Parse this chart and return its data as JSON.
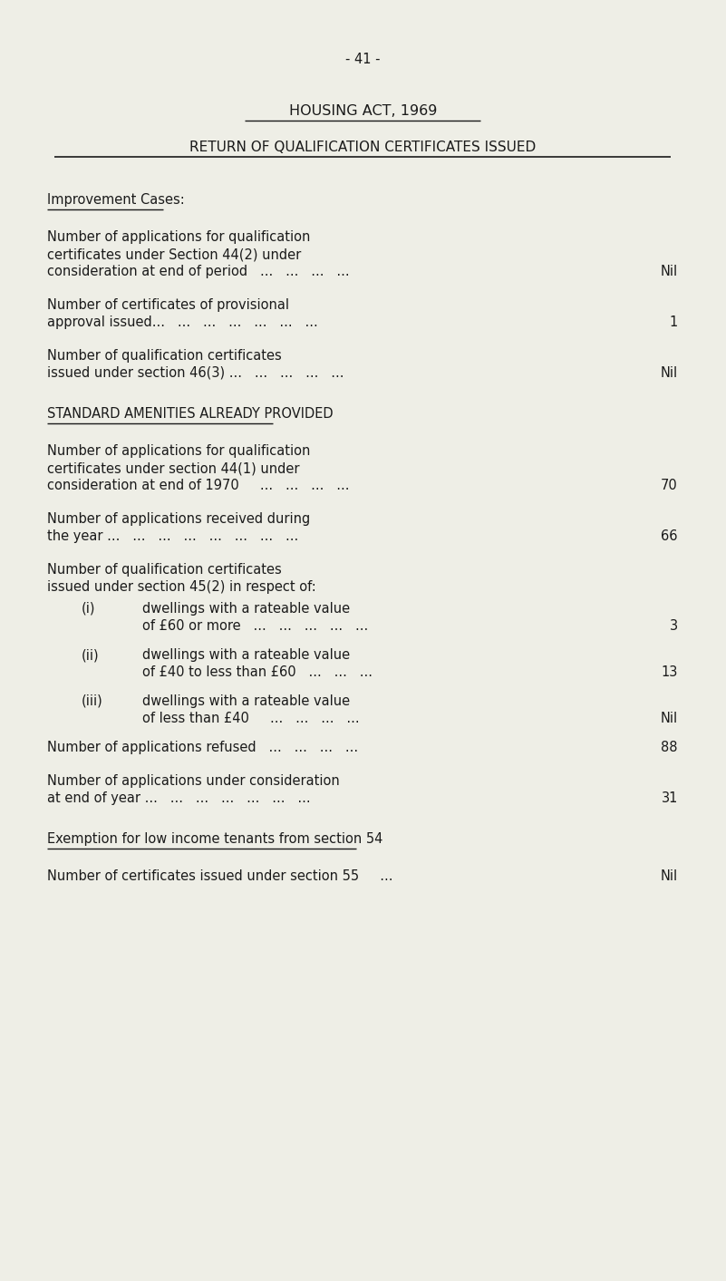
{
  "page_number": "- 41 -",
  "title1": "HOUSING ACT, 1969",
  "title2": "RETURN OF QUALIFICATION CERTIFICATES ISSUED",
  "background_color": "#eeeee6",
  "text_color": "#1a1a1a",
  "font_size": 10.5,
  "sections": [
    {
      "type": "section_header",
      "text": "Improvement Cases:",
      "underline": true
    },
    {
      "type": "entry",
      "lines": [
        "Number of applications for qualification",
        "certificates under Section 44(2) under",
        "consideration at end of period   ...   ...   ...   ..."
      ],
      "value": "Nil"
    },
    {
      "type": "entry",
      "lines": [
        "Number of certificates of provisional",
        "approval issued...   ...   ...   ...   ...   ...   ..."
      ],
      "value": "1"
    },
    {
      "type": "entry",
      "lines": [
        "Number of qualification certificates",
        "issued under section 46(3) ...   ...   ...   ...   ..."
      ],
      "value": "Nil"
    },
    {
      "type": "section_header",
      "text": "STANDARD AMENITIES ALREADY PROVIDED",
      "underline": true
    },
    {
      "type": "entry",
      "lines": [
        "Number of applications for qualification",
        "certificates under section 44(1) under",
        "consideration at end of 1970     ...   ...   ...   ..."
      ],
      "value": "70"
    },
    {
      "type": "entry",
      "lines": [
        "Number of applications received during",
        "the year ...   ...   ...   ...   ...   ...   ...   ..."
      ],
      "value": "66"
    },
    {
      "type": "entry_novalue",
      "lines": [
        "Number of qualification certificates",
        "issued under section 45(2) in respect of:"
      ]
    },
    {
      "type": "sub_entry",
      "label": "(i)",
      "lines": [
        "dwellings with a rateable value",
        "of £60 or more   ...   ...   ...   ...   ..."
      ],
      "value": "3"
    },
    {
      "type": "sub_entry",
      "label": "(ii)",
      "lines": [
        "dwellings with a rateable value",
        "of £40 to less than £60   ...   ...   ..."
      ],
      "value": "13"
    },
    {
      "type": "sub_entry",
      "label": "(iii)",
      "lines": [
        "dwellings with a rateable value",
        "of less than £40     ...   ...   ...   ..."
      ],
      "value": "Nil"
    },
    {
      "type": "entry",
      "lines": [
        "Number of applications refused   ...   ...   ...   ..."
      ],
      "value": "88"
    },
    {
      "type": "entry",
      "lines": [
        "Number of applications under consideration",
        "at end of year ...   ...   ...   ...   ...   ...   ..."
      ],
      "value": "31"
    },
    {
      "type": "section_header",
      "text": "Exemption for low income tenants from section 54",
      "underline": true
    },
    {
      "type": "entry",
      "lines": [
        "Number of certificates issued under section 55     ..."
      ],
      "value": "Nil"
    }
  ]
}
